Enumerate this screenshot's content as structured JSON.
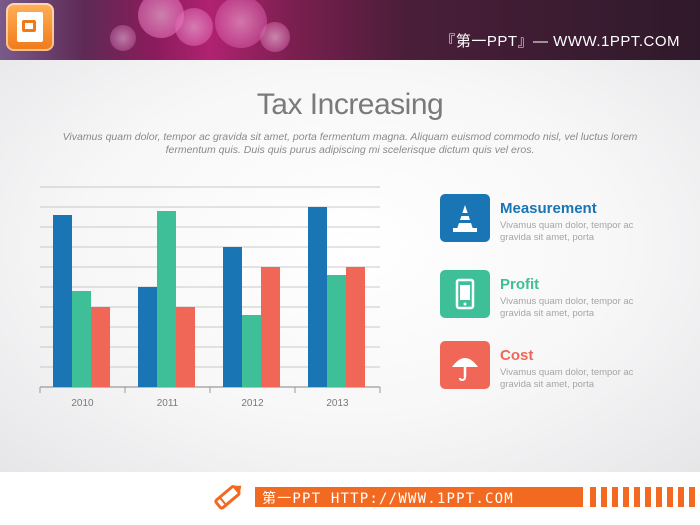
{
  "header": {
    "brand": "『第一PPT』— WWW.1PPT.COM"
  },
  "slide": {
    "title": "Tax Increasing",
    "subtitle_line1": "Vivamus quam dolor,  tempor ac gravida sit amet, porta fermentum magna. Aliquam euismod commodo nisl, vel luctus lorem",
    "subtitle_line2": "fermentum quis. Duis quis purus adipiscing mi scelerisque dictum quis vel eros."
  },
  "legend": [
    {
      "name": "Measurement",
      "desc": "Vivamus quam dolor,  tempor ac gravida  sit amet, porta",
      "color": "#1a75b5",
      "icon": "traffic-cone-icon"
    },
    {
      "name": "Profit",
      "desc": "Vivamus quam dolor,  tempor ac gravida  sit amet, porta",
      "color": "#3fbf97",
      "icon": "mobile-phone-icon"
    },
    {
      "name": "Cost",
      "desc": "Vivamus quam dolor,  tempor ac gravida  sit amet, porta",
      "color": "#f16757",
      "icon": "umbrella-icon"
    }
  ],
  "chart_data": {
    "type": "bar",
    "categories": [
      "2010",
      "2011",
      "2012",
      "2013"
    ],
    "series": [
      {
        "name": "Measurement",
        "color": "#1a75b5",
        "values": [
          86,
          50,
          70,
          90
        ]
      },
      {
        "name": "Profit",
        "color": "#3fbf97",
        "values": [
          48,
          88,
          36,
          56
        ]
      },
      {
        "name": "Cost",
        "color": "#f16757",
        "values": [
          40,
          40,
          60,
          60
        ]
      }
    ],
    "ylim": [
      0,
      100
    ],
    "grid": true,
    "title": "",
    "xlabel": "",
    "ylabel": ""
  },
  "footer": {
    "text": "第一PPT HTTP://WWW.1PPT.COM"
  }
}
